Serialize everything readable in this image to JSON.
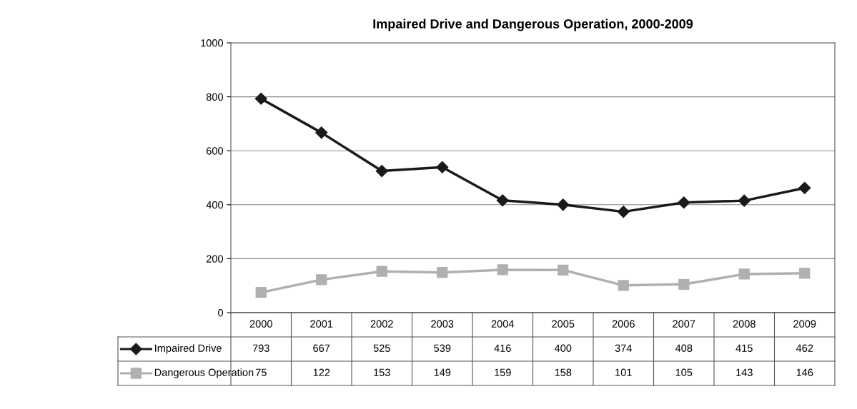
{
  "chart_data": {
    "type": "line",
    "title": "Impaired Drive and Dangerous Operation, 2000-2009",
    "categories": [
      "2000",
      "2001",
      "2002",
      "2003",
      "2004",
      "2005",
      "2006",
      "2007",
      "2008",
      "2009"
    ],
    "series": [
      {
        "name": "Impaired Drive",
        "color": "#1a1a1a",
        "marker": "diamond",
        "values": [
          793,
          667,
          525,
          539,
          416,
          400,
          374,
          408,
          415,
          462
        ]
      },
      {
        "name": "Dangerous Operation",
        "color": "#b0b0b0",
        "marker": "square",
        "values": [
          75,
          122,
          153,
          149,
          159,
          158,
          101,
          105,
          143,
          146
        ]
      }
    ],
    "ylim": [
      0,
      1000
    ],
    "yticks": [
      0,
      200,
      400,
      600,
      800,
      1000
    ],
    "grid": "y",
    "legend": "bottom",
    "data_labels": true
  }
}
